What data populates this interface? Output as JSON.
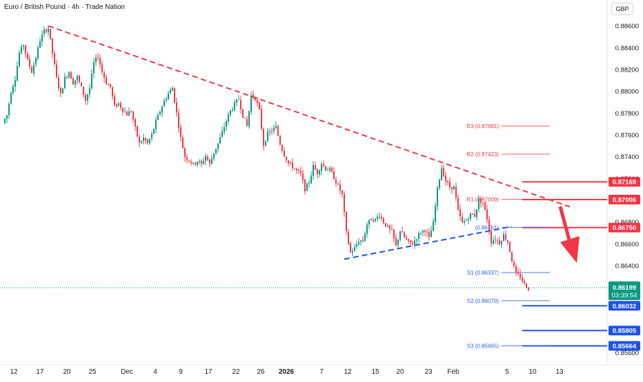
{
  "header": {
    "title": "Euro / British Pound · 4h · Trade Nation",
    "currency": "GBP"
  },
  "colors": {
    "up": "#089981",
    "down": "#f23645",
    "resistance": "#f23645",
    "support": "#1e53e5",
    "pivot_red": "#f23645",
    "pivot_blue": "#2962ff",
    "current_price": "#089981"
  },
  "chart_data": {
    "type": "candlestick",
    "symbol": "Euro / British Pound",
    "interval": "4h",
    "x_ticks": [
      "12",
      "17",
      "20",
      "25",
      "Dec",
      "4",
      "9",
      "17",
      "22",
      "26",
      "2026",
      "7",
      "12",
      "15",
      "20",
      "23",
      "Feb",
      "5",
      "10",
      "13"
    ],
    "y_ticks": [
      "0.88600",
      "0.88400",
      "0.88200",
      "0.88000",
      "0.87800",
      "0.87600",
      "0.87400",
      "0.87200",
      "0.86800",
      "0.86600",
      "0.86400",
      "0.85600"
    ],
    "ylim": [
      0.8556,
      0.8868
    ],
    "price_path": [
      [
        0,
        0.8771
      ],
      [
        2,
        0.8778
      ],
      [
        4,
        0.88
      ],
      [
        6,
        0.8812
      ],
      [
        8,
        0.8835
      ],
      [
        10,
        0.8843
      ],
      [
        12,
        0.8828
      ],
      [
        14,
        0.8818
      ],
      [
        16,
        0.8831
      ],
      [
        18,
        0.8847
      ],
      [
        20,
        0.8855
      ],
      [
        22,
        0.8858
      ],
      [
        24,
        0.8835
      ],
      [
        26,
        0.8812
      ],
      [
        28,
        0.8797
      ],
      [
        30,
        0.8812
      ],
      [
        32,
        0.8818
      ],
      [
        34,
        0.8808
      ],
      [
        36,
        0.8813
      ],
      [
        38,
        0.8803
      ],
      [
        40,
        0.8792
      ],
      [
        42,
        0.8803
      ],
      [
        44,
        0.8826
      ],
      [
        46,
        0.8832
      ],
      [
        48,
        0.8818
      ],
      [
        50,
        0.8808
      ],
      [
        52,
        0.8804
      ],
      [
        54,
        0.8786
      ],
      [
        56,
        0.8789
      ],
      [
        58,
        0.8783
      ],
      [
        60,
        0.8779
      ],
      [
        62,
        0.8782
      ],
      [
        64,
        0.8766
      ],
      [
        66,
        0.8752
      ],
      [
        68,
        0.8757
      ],
      [
        70,
        0.8752
      ],
      [
        72,
        0.876
      ],
      [
        74,
        0.8772
      ],
      [
        76,
        0.8782
      ],
      [
        78,
        0.8791
      ],
      [
        80,
        0.8798
      ],
      [
        82,
        0.8803
      ],
      [
        84,
        0.878
      ],
      [
        86,
        0.8757
      ],
      [
        88,
        0.874
      ],
      [
        90,
        0.8737
      ],
      [
        92,
        0.8733
      ],
      [
        94,
        0.8736
      ],
      [
        96,
        0.8733
      ],
      [
        98,
        0.8741
      ],
      [
        100,
        0.8733
      ],
      [
        102,
        0.8744
      ],
      [
        104,
        0.8752
      ],
      [
        106,
        0.8762
      ],
      [
        108,
        0.8773
      ],
      [
        110,
        0.8782
      ],
      [
        112,
        0.8788
      ],
      [
        114,
        0.8793
      ],
      [
        116,
        0.8778
      ],
      [
        118,
        0.8768
      ],
      [
        120,
        0.8796
      ],
      [
        122,
        0.8794
      ],
      [
        124,
        0.8782
      ],
      [
        126,
        0.8751
      ],
      [
        128,
        0.8761
      ],
      [
        130,
        0.8764
      ],
      [
        132,
        0.8767
      ],
      [
        134,
        0.8752
      ],
      [
        136,
        0.8742
      ],
      [
        138,
        0.8734
      ],
      [
        140,
        0.8731
      ],
      [
        142,
        0.8727
      ],
      [
        144,
        0.8724
      ],
      [
        146,
        0.871
      ],
      [
        148,
        0.8717
      ],
      [
        150,
        0.8731
      ],
      [
        152,
        0.8725
      ],
      [
        154,
        0.8734
      ],
      [
        156,
        0.8729
      ],
      [
        158,
        0.8728
      ],
      [
        160,
        0.8721
      ],
      [
        162,
        0.8713
      ],
      [
        164,
        0.8705
      ],
      [
        166,
        0.867
      ],
      [
        168,
        0.8652
      ],
      [
        170,
        0.8656
      ],
      [
        172,
        0.8663
      ],
      [
        174,
        0.8663
      ],
      [
        176,
        0.8678
      ],
      [
        178,
        0.8683
      ],
      [
        180,
        0.8682
      ],
      [
        182,
        0.8687
      ],
      [
        184,
        0.868
      ],
      [
        186,
        0.8675
      ],
      [
        188,
        0.8671
      ],
      [
        190,
        0.8658
      ],
      [
        192,
        0.8672
      ],
      [
        194,
        0.8666
      ],
      [
        196,
        0.8661
      ],
      [
        198,
        0.866
      ],
      [
        200,
        0.8666
      ],
      [
        202,
        0.8671
      ],
      [
        204,
        0.8673
      ],
      [
        206,
        0.8665
      ],
      [
        208,
        0.8679
      ],
      [
        210,
        0.871
      ],
      [
        212,
        0.873
      ],
      [
        214,
        0.8718
      ],
      [
        216,
        0.8712
      ],
      [
        218,
        0.8712
      ],
      [
        220,
        0.869
      ],
      [
        222,
        0.8679
      ],
      [
        224,
        0.8682
      ],
      [
        226,
        0.8687
      ],
      [
        228,
        0.8686
      ],
      [
        230,
        0.87
      ],
      [
        232,
        0.8698
      ],
      [
        234,
        0.8683
      ],
      [
        236,
        0.8662
      ],
      [
        238,
        0.8665
      ],
      [
        240,
        0.8661
      ],
      [
        242,
        0.8668
      ],
      [
        244,
        0.8662
      ],
      [
        246,
        0.8645
      ],
      [
        248,
        0.8632
      ],
      [
        250,
        0.863
      ],
      [
        252,
        0.8623
      ],
      [
        254,
        0.8619
      ]
    ],
    "indicator_lines": [
      {
        "name": "trend_resistance",
        "style": "dashed",
        "color": "#f23645",
        "from": [
          22,
          0.886
        ],
        "to": [
          274,
          0.8694
        ]
      },
      {
        "name": "trend_support",
        "style": "dashed",
        "color": "#1e53e5",
        "from": [
          165,
          0.8646
        ],
        "to": [
          246,
          0.8676
        ]
      }
    ],
    "pivot_levels": [
      {
        "name": "R3",
        "label": "R3 (0.87681)",
        "value": 0.87681,
        "color": "#f23645"
      },
      {
        "name": "R2",
        "label": "R2 (0.87423)",
        "value": 0.87423,
        "color": "#f23645"
      },
      {
        "name": "R1",
        "label": "R1 (0.87009)",
        "value": 0.87009,
        "color": "#f23645"
      },
      {
        "name": "P",
        "label": "(0.86751)",
        "value": 0.86751,
        "color": "#2962ff"
      },
      {
        "name": "S1",
        "label": "S1 (0.86337)",
        "value": 0.86337,
        "color": "#2962ff"
      },
      {
        "name": "S2",
        "label": "S2 (0.86079)",
        "value": 0.86079,
        "color": "#2962ff"
      },
      {
        "name": "S3",
        "label": "S3 (0.85665)",
        "value": 0.85665,
        "color": "#2962ff"
      }
    ],
    "horizontal_levels": [
      {
        "label": "0.87169",
        "value": 0.87169,
        "color": "#f23645"
      },
      {
        "label": "0.87006",
        "value": 0.87006,
        "color": "#f23645"
      },
      {
        "label": "0.86750",
        "value": 0.8675,
        "color": "#f23645"
      },
      {
        "label": "0.86032",
        "value": 0.86032,
        "color": "#1e53e5"
      },
      {
        "label": "0.85805",
        "value": 0.85805,
        "color": "#1e53e5"
      },
      {
        "label": "0.85664",
        "value": 0.85664,
        "color": "#1e53e5"
      }
    ],
    "current_price": {
      "value": "0.86199",
      "countdown": "03:39:54"
    },
    "projection_arrow": {
      "direction": "down",
      "color": "#f23645"
    }
  }
}
